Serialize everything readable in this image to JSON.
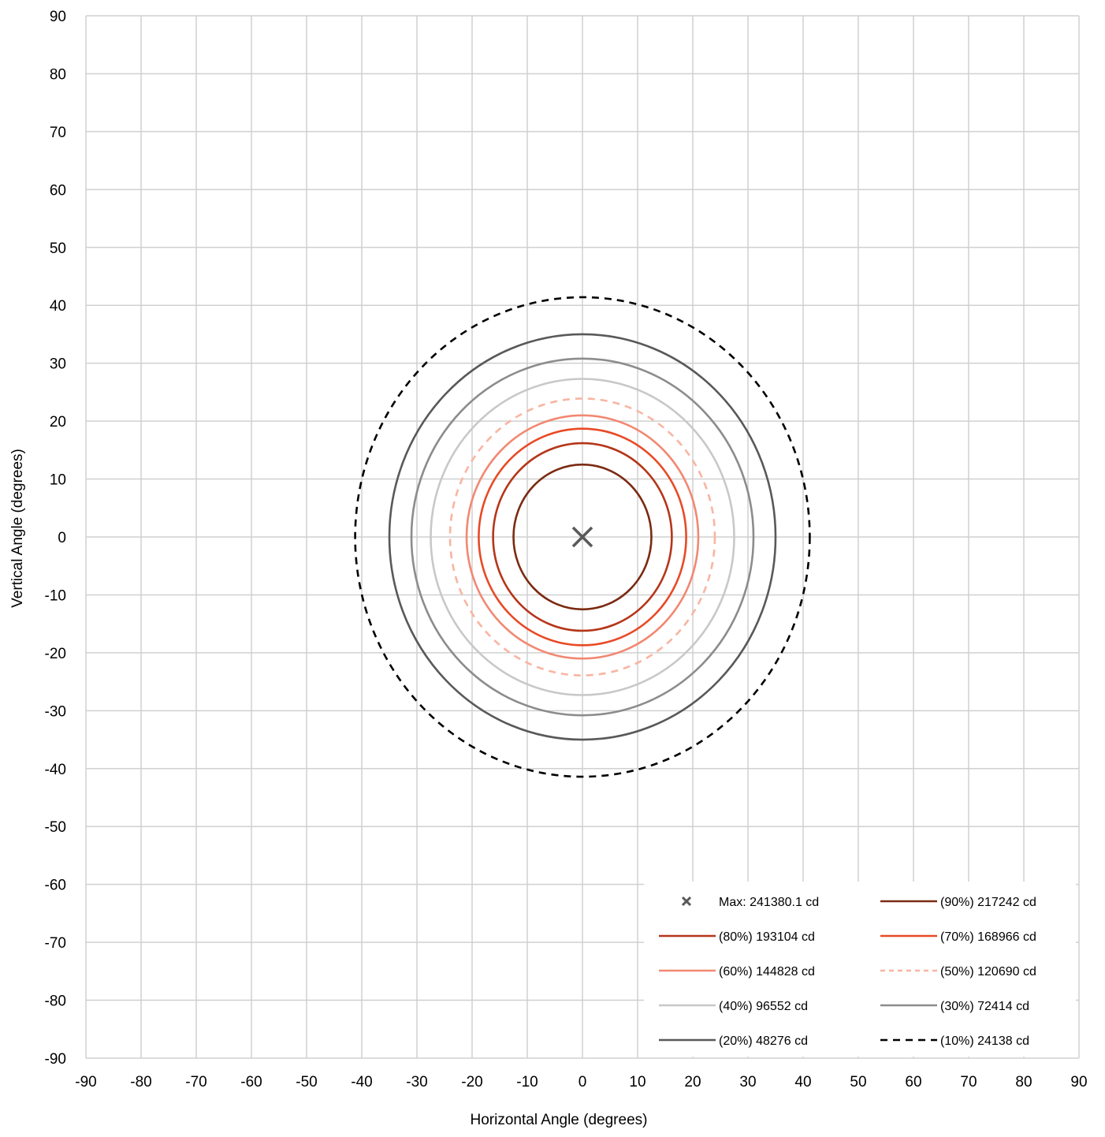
{
  "chart_data": {
    "type": "contour",
    "title": "",
    "xlabel": "Horizontal Angle (degrees)",
    "ylabel": "Vertical Angle (degrees)",
    "xlim": [
      -90,
      90
    ],
    "ylim": [
      -90,
      90
    ],
    "x_ticks": [
      "-90",
      "-80",
      "-70",
      "-60",
      "-50",
      "-40",
      "-30",
      "-20",
      "-10",
      "0",
      "10",
      "20",
      "30",
      "40",
      "50",
      "60",
      "70",
      "80",
      "90"
    ],
    "y_ticks": [
      "90",
      "80",
      "70",
      "60",
      "50",
      "40",
      "30",
      "20",
      "10",
      "0",
      "-10",
      "-20",
      "-30",
      "-40",
      "-50",
      "-60",
      "-70",
      "-80",
      "-90"
    ],
    "grid": true,
    "legend_position": "bottom-right",
    "max_point": {
      "label": "Max: 241380.1 cd",
      "x": 0,
      "y": 0,
      "color": "#595959"
    },
    "series": [
      {
        "name": "(90%) 217242 cd",
        "color": "#7b2a12",
        "dash": "solid",
        "rx": 12.5,
        "ry": 12.5
      },
      {
        "name": "(80%) 193104 cd",
        "color": "#b5361a",
        "dash": "solid",
        "rx": 16.2,
        "ry": 16.2
      },
      {
        "name": "(70%) 168966 cd",
        "color": "#e84a26",
        "dash": "solid",
        "rx": 18.8,
        "ry": 18.7
      },
      {
        "name": "(60%) 144828 cd",
        "color": "#f28872",
        "dash": "solid",
        "rx": 21.0,
        "ry": 21.0
      },
      {
        "name": "(50%) 120690 cd",
        "color": "#f8b5a2",
        "dash": "dashed",
        "rx": 24.0,
        "ry": 23.9
      },
      {
        "name": "(40%) 96552 cd",
        "color": "#c8c8c8",
        "dash": "solid",
        "rx": 27.5,
        "ry": 27.3
      },
      {
        "name": "(30%) 72414 cd",
        "color": "#8c8c8c",
        "dash": "solid",
        "rx": 31.0,
        "ry": 30.8
      },
      {
        "name": "(20%) 48276 cd",
        "color": "#595959",
        "dash": "solid",
        "rx": 35.0,
        "ry": 35.0
      },
      {
        "name": "(10%) 24138 cd",
        "color": "#000000",
        "dash": "dashed",
        "rx": 41.2,
        "ry": 41.4
      }
    ]
  }
}
